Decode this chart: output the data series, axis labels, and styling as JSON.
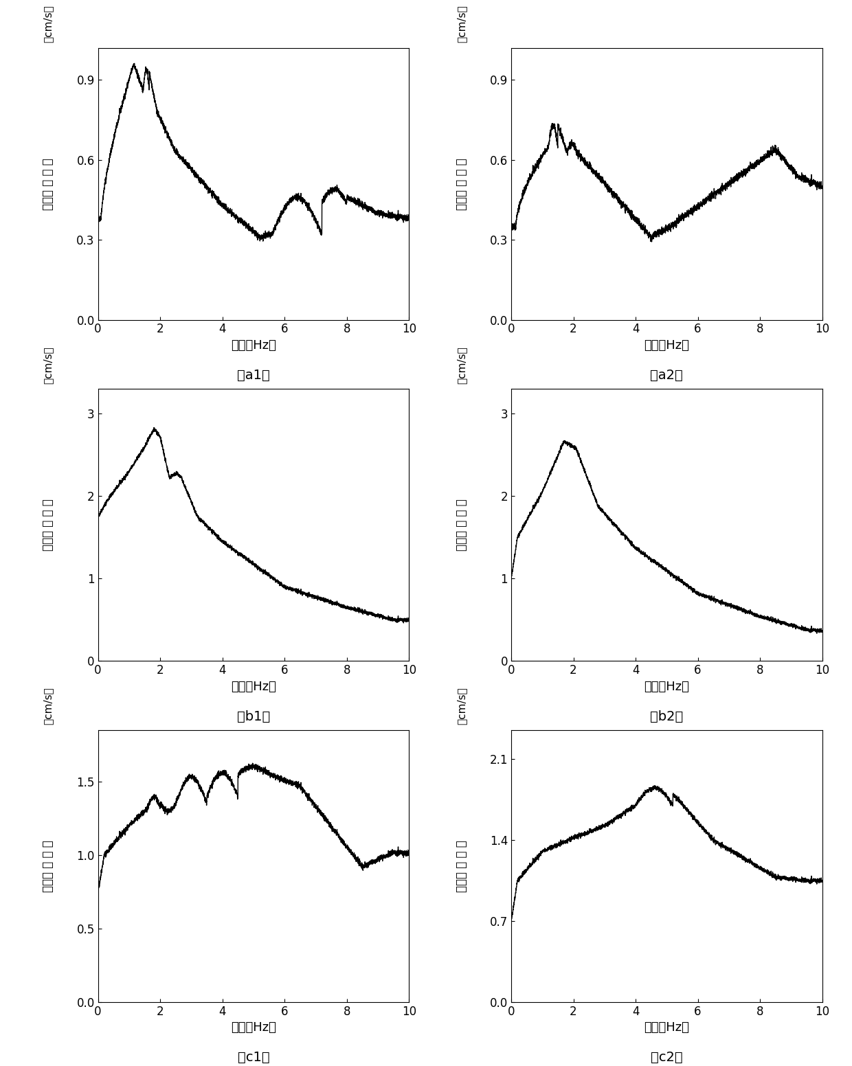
{
  "panels": [
    {
      "label": "（a1）",
      "ylabel_line1": "（cm/s）",
      "ylabel_line2": "值",
      "ylabel_line3": "幅",
      "ylabel_line4": "谱",
      "ylabel_line5": "加速度",
      "xlabel": "频率（Hz）",
      "yticks": [
        0.0,
        0.3,
        0.6,
        0.9
      ],
      "ylim": [
        0.0,
        1.02
      ],
      "xlim": [
        0,
        10
      ],
      "xticks": [
        0,
        2,
        4,
        6,
        8,
        10
      ],
      "curve_type": "a1"
    },
    {
      "label": "（a2）",
      "ylabel_line1": "（cm/s）",
      "ylabel_line2": "值",
      "ylabel_line3": "幅",
      "ylabel_line4": "谱",
      "ylabel_line5": "加速度",
      "xlabel": "频率（Hz）",
      "yticks": [
        0.0,
        0.3,
        0.6,
        0.9
      ],
      "ylim": [
        0.0,
        1.02
      ],
      "xlim": [
        0,
        10
      ],
      "xticks": [
        0,
        2,
        4,
        6,
        8,
        10
      ],
      "curve_type": "a2"
    },
    {
      "label": "（b1）",
      "ylabel_line1": "（cm/s）",
      "ylabel_line2": "值",
      "ylabel_line3": "幅",
      "ylabel_line4": "谱",
      "ylabel_line5": "加速度",
      "xlabel": "频率（Hz）",
      "yticks": [
        0,
        1,
        2,
        3
      ],
      "ylim": [
        0,
        3.3
      ],
      "xlim": [
        0,
        10
      ],
      "xticks": [
        0,
        2,
        4,
        6,
        8,
        10
      ],
      "curve_type": "b1"
    },
    {
      "label": "（b2）",
      "ylabel_line1": "（cm/s）",
      "ylabel_line2": "值",
      "ylabel_line3": "幅",
      "ylabel_line4": "谱",
      "ylabel_line5": "加速度",
      "xlabel": "频率（Hz）",
      "yticks": [
        0,
        1,
        2,
        3
      ],
      "ylim": [
        0,
        3.3
      ],
      "xlim": [
        0,
        10
      ],
      "xticks": [
        0,
        2,
        4,
        6,
        8,
        10
      ],
      "curve_type": "b2"
    },
    {
      "label": "（c1）",
      "ylabel_line1": "（cm/s）",
      "ylabel_line2": "值",
      "ylabel_line3": "幅",
      "ylabel_line4": "谱",
      "ylabel_line5": "加速度",
      "xlabel": "频率（Hz）",
      "yticks": [
        0.0,
        0.5,
        1.0,
        1.5
      ],
      "ylim": [
        0.0,
        1.85
      ],
      "xlim": [
        0,
        10
      ],
      "xticks": [
        0,
        2,
        4,
        6,
        8,
        10
      ],
      "curve_type": "c1"
    },
    {
      "label": "（c2）",
      "ylabel_line1": "（cm/s）",
      "ylabel_line2": "值",
      "ylabel_line3": "幅",
      "ylabel_line4": "谱",
      "ylabel_line5": "加速度",
      "xlabel": "频率（Hz）",
      "yticks": [
        0.0,
        0.7,
        1.4,
        2.1
      ],
      "ylim": [
        0.0,
        2.35
      ],
      "xlim": [
        0,
        10
      ],
      "xticks": [
        0,
        2,
        4,
        6,
        8,
        10
      ],
      "curve_type": "c2"
    }
  ],
  "line_color": "#000000",
  "line_width": 1.0,
  "background_color": "#ffffff"
}
